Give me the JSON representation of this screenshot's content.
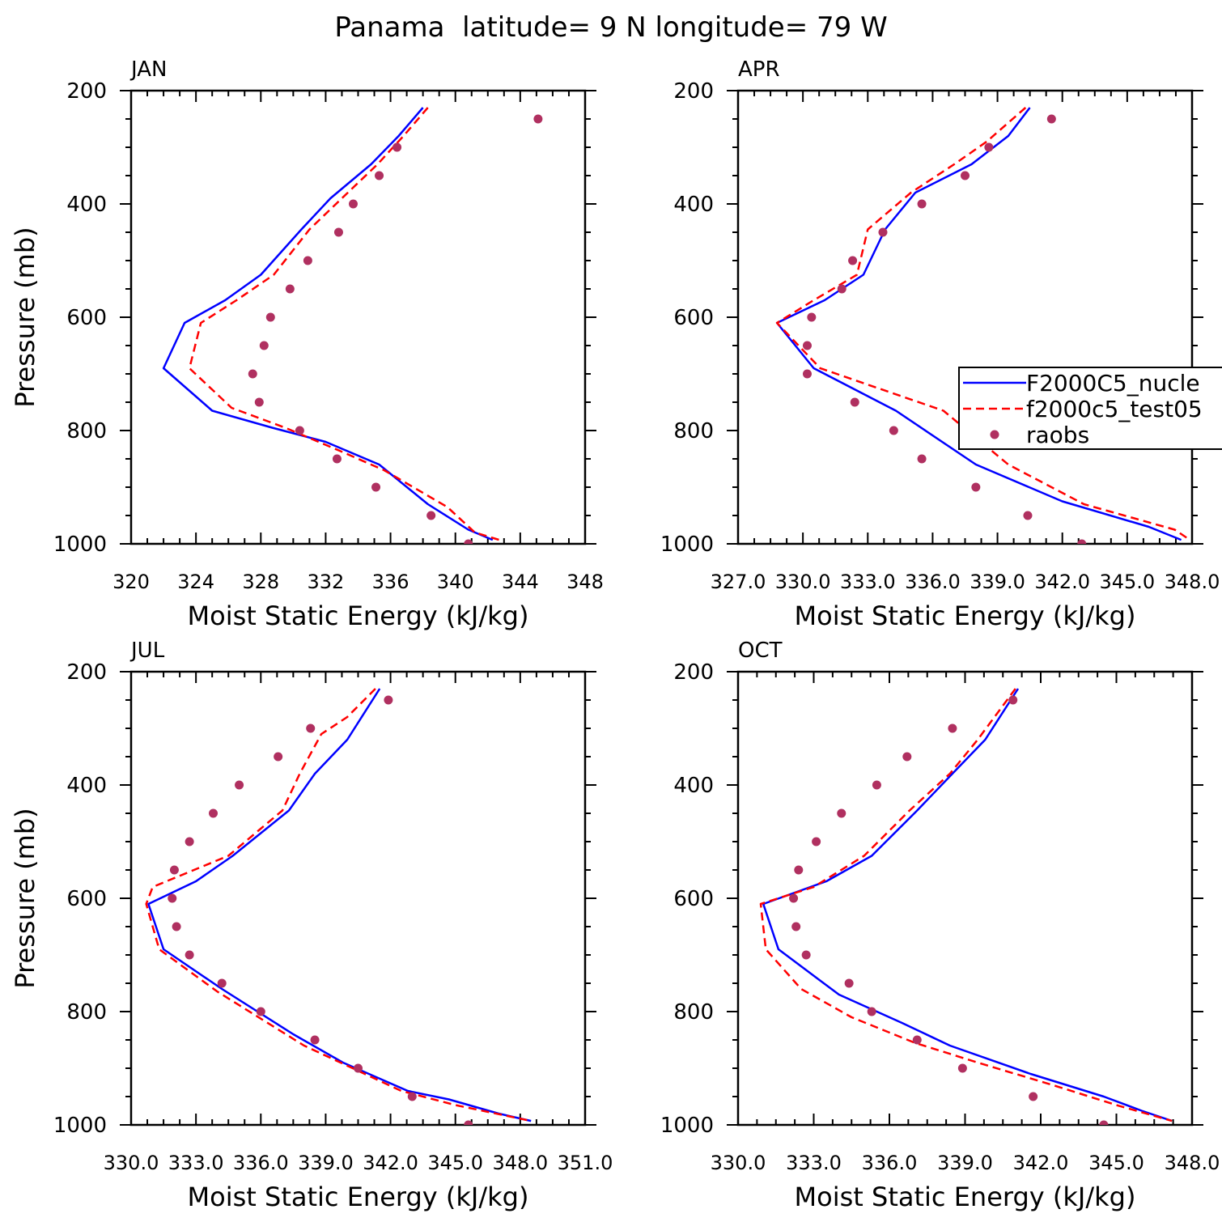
{
  "figure": {
    "title": "Panama  latitude= 9 N longitude= 79 W"
  },
  "colors": {
    "model_nucleation": "#0000ff",
    "model_test": "#ff0000",
    "raobs": "#b03060",
    "axis": "#000000"
  },
  "legend": {
    "placement": "inside APR panel, right edge",
    "entries": [
      {
        "label": "F2000C5_nucle",
        "style": "solid-line",
        "color": "#0000ff"
      },
      {
        "label": "f2000c5_test05",
        "style": "dashed-line",
        "color": "#ff0000"
      },
      {
        "label": "raobs",
        "style": "marker",
        "color": "#b03060"
      }
    ]
  },
  "chart_data": [
    {
      "type": "line",
      "panel": "JAN",
      "xlabel": "Moist Static Energy (kJ/kg)",
      "ylabel": "Pressure (mb)",
      "xlim": [
        320,
        348
      ],
      "ylim": [
        1000,
        200
      ],
      "y_reversed": true,
      "x_ticks": [
        320,
        324,
        328,
        332,
        336,
        340,
        344,
        348
      ],
      "x_tick_labels": [
        "320",
        "324",
        "328",
        "332",
        "336",
        "340",
        "344",
        "348"
      ],
      "y_ticks": [
        200,
        400,
        600,
        800,
        1000
      ],
      "y_tick_labels": [
        "200",
        "400",
        "600",
        "800",
        "1000"
      ],
      "series": [
        {
          "name": "F2000C5_nucle",
          "style": "solid",
          "x": [
            338.0,
            336.5,
            334.8,
            332.3,
            330.5,
            328.0,
            325.8,
            323.3,
            322.0,
            325.0,
            328.7,
            332.0,
            335.3,
            338.3,
            340.8,
            342.3
          ],
          "y": [
            230,
            280,
            330,
            390,
            445,
            525,
            570,
            610,
            690,
            765,
            795,
            820,
            860,
            930,
            975,
            993
          ]
        },
        {
          "name": "f2000c5_test05",
          "style": "dashed",
          "x": [
            338.3,
            336.8,
            335.2,
            333.0,
            331.0,
            328.8,
            326.5,
            324.3,
            323.6,
            326.2,
            329.5,
            332.8,
            335.6,
            339.5,
            341.2,
            342.7
          ],
          "y": [
            230,
            280,
            330,
            390,
            445,
            525,
            570,
            610,
            690,
            760,
            795,
            835,
            870,
            935,
            980,
            993
          ]
        },
        {
          "name": "raobs",
          "style": "markers",
          "x": [
            345.1,
            336.4,
            335.3,
            333.7,
            332.8,
            330.9,
            329.8,
            328.6,
            328.2,
            327.5,
            327.9,
            330.4,
            332.7,
            335.1,
            338.5,
            340.8
          ],
          "y": [
            250,
            300,
            350,
            400,
            450,
            500,
            550,
            600,
            650,
            700,
            750,
            800,
            850,
            900,
            950,
            1000
          ]
        }
      ]
    },
    {
      "type": "line",
      "panel": "APR",
      "xlabel": "Moist Static Energy (kJ/kg)",
      "ylabel": "",
      "xlim": [
        327.0,
        348.0
      ],
      "ylim": [
        1000,
        200
      ],
      "y_reversed": true,
      "x_ticks": [
        327,
        330,
        333,
        336,
        339,
        342,
        345,
        348
      ],
      "x_tick_labels": [
        "327.0",
        "330.0",
        "333.0",
        "336.0",
        "339.0",
        "342.0",
        "345.0",
        "348.0"
      ],
      "y_ticks": [
        200,
        400,
        600,
        800,
        1000
      ],
      "y_tick_labels": [
        "200",
        "400",
        "600",
        "800",
        "1000"
      ],
      "series": [
        {
          "name": "F2000C5_nucle",
          "style": "solid",
          "x": [
            340.5,
            339.5,
            337.8,
            335.2,
            333.8,
            332.8,
            331.0,
            328.8,
            330.5,
            334.3,
            338.0,
            342.0,
            346.0,
            347.5
          ],
          "y": [
            230,
            280,
            330,
            380,
            445,
            525,
            570,
            610,
            690,
            765,
            860,
            925,
            970,
            993
          ]
        },
        {
          "name": "f2000c5_test05",
          "style": "dashed",
          "x": [
            340.3,
            338.5,
            337.0,
            335.0,
            333.0,
            332.5,
            330.5,
            328.8,
            330.8,
            336.5,
            339.5,
            343.0,
            347.2,
            347.9
          ],
          "y": [
            230,
            290,
            330,
            380,
            445,
            525,
            570,
            610,
            690,
            765,
            860,
            930,
            975,
            993
          ]
        },
        {
          "name": "raobs",
          "style": "markers",
          "x": [
            341.5,
            338.6,
            337.5,
            335.5,
            333.7,
            332.3,
            331.8,
            330.4,
            330.2,
            330.2,
            332.4,
            334.2,
            335.5,
            338.0,
            340.4,
            342.9
          ],
          "y": [
            250,
            300,
            350,
            400,
            450,
            500,
            550,
            600,
            650,
            700,
            750,
            800,
            850,
            900,
            950,
            1000
          ]
        }
      ]
    },
    {
      "type": "line",
      "panel": "JUL",
      "xlabel": "Moist Static Energy (kJ/kg)",
      "ylabel": "Pressure (mb)",
      "xlim": [
        330.0,
        351.0
      ],
      "ylim": [
        1000,
        200
      ],
      "y_reversed": true,
      "x_ticks": [
        330,
        333,
        336,
        339,
        342,
        345,
        348,
        351
      ],
      "x_tick_labels": [
        "330.0",
        "333.0",
        "336.0",
        "339.0",
        "342.0",
        "345.0",
        "348.0",
        "351.0"
      ],
      "y_ticks": [
        200,
        400,
        600,
        800,
        1000
      ],
      "y_tick_labels": [
        "200",
        "400",
        "600",
        "800",
        "1000"
      ],
      "series": [
        {
          "name": "F2000C5_nucle",
          "style": "solid",
          "x": [
            341.5,
            340.0,
            338.5,
            337.3,
            334.7,
            333.0,
            330.8,
            331.5,
            334.2,
            337.5,
            339.8,
            342.8,
            344.7,
            347.0,
            348.5
          ],
          "y": [
            230,
            320,
            380,
            445,
            525,
            570,
            610,
            690,
            760,
            840,
            890,
            940,
            955,
            980,
            993
          ]
        },
        {
          "name": "f2000c5_test05",
          "style": "dashed",
          "x": [
            341.3,
            340.0,
            338.8,
            337.8,
            337.0,
            334.5,
            331.0,
            330.7,
            331.3,
            334.0,
            338.0,
            342.5,
            345.0,
            348.5
          ],
          "y": [
            230,
            280,
            310,
            380,
            445,
            525,
            580,
            610,
            690,
            765,
            860,
            940,
            965,
            993
          ]
        },
        {
          "name": "raobs",
          "style": "markers",
          "x": [
            341.9,
            338.3,
            336.8,
            335.0,
            333.8,
            332.7,
            332.0,
            331.9,
            332.1,
            332.7,
            334.2,
            336.0,
            338.5,
            340.5,
            343.0,
            345.6
          ],
          "y": [
            250,
            300,
            350,
            400,
            450,
            500,
            550,
            600,
            650,
            700,
            750,
            800,
            850,
            900,
            950,
            1000
          ]
        }
      ]
    },
    {
      "type": "line",
      "panel": "OCT",
      "xlabel": "Moist Static Energy (kJ/kg)",
      "ylabel": "",
      "xlim": [
        330.0,
        348.0
      ],
      "ylim": [
        1000,
        200
      ],
      "y_reversed": true,
      "x_ticks": [
        330,
        333,
        336,
        339,
        342,
        345,
        348
      ],
      "x_tick_labels": [
        "330.0",
        "333.0",
        "336.0",
        "339.0",
        "342.0",
        "345.0",
        "348.0"
      ],
      "y_ticks": [
        200,
        400,
        600,
        800,
        1000
      ],
      "y_tick_labels": [
        "200",
        "400",
        "600",
        "800",
        "1000"
      ],
      "series": [
        {
          "name": "F2000C5_nucle",
          "style": "solid",
          "x": [
            341.1,
            339.8,
            338.5,
            337.1,
            335.3,
            333.5,
            331.0,
            331.6,
            334.0,
            336.5,
            338.4,
            341.6,
            344.5,
            346.0,
            347.2
          ],
          "y": [
            230,
            320,
            380,
            445,
            525,
            570,
            610,
            690,
            770,
            820,
            860,
            910,
            950,
            975,
            993
          ]
        },
        {
          "name": "f2000c5_test05",
          "style": "dashed",
          "x": [
            341.0,
            339.5,
            338.4,
            336.8,
            335.0,
            333.0,
            330.9,
            331.1,
            332.5,
            334.5,
            337.0,
            339.5,
            342.5,
            345.0,
            347.2
          ],
          "y": [
            230,
            320,
            380,
            445,
            525,
            580,
            610,
            690,
            760,
            810,
            855,
            890,
            930,
            965,
            993
          ]
        },
        {
          "name": "raobs",
          "style": "markers",
          "x": [
            340.9,
            338.5,
            336.7,
            335.5,
            334.1,
            333.1,
            332.4,
            332.2,
            332.3,
            332.7,
            334.4,
            335.3,
            337.1,
            338.9,
            341.7,
            344.5
          ],
          "y": [
            250,
            300,
            350,
            400,
            450,
            500,
            550,
            600,
            650,
            700,
            750,
            800,
            850,
            900,
            950,
            1000
          ]
        }
      ]
    }
  ]
}
